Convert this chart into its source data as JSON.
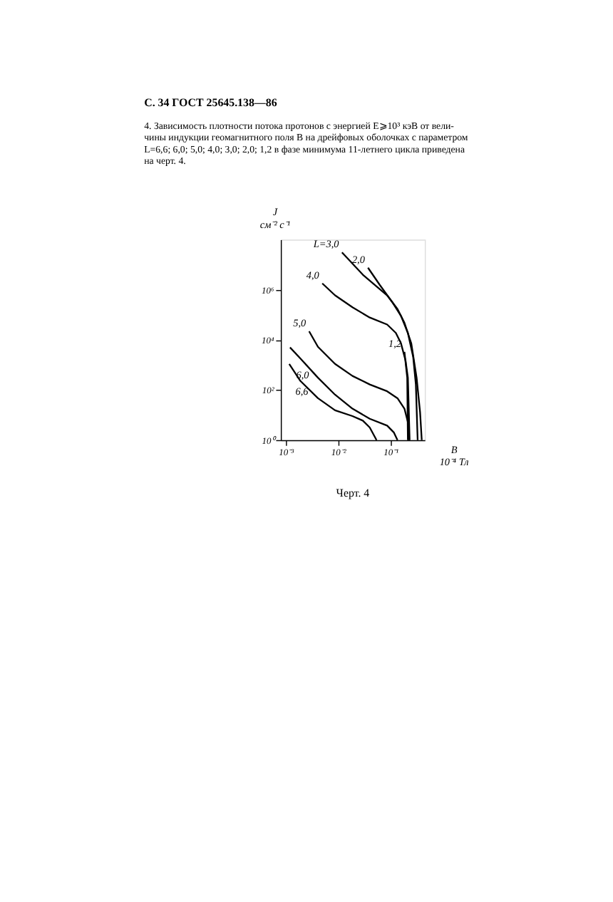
{
  "chart_data": {
    "type": "line",
    "title": "С. 34 ГОСТ 25645.138—86",
    "subtitle": "4. Зависимость плотности потока протонов с энергией E⩾10³ кэВ от вели-\nчины индукции геомагнитного поля B на дрейфовых оболочках с параметром\nL=6,6; 6,0; 5,0; 4,0; 3,0; 2,0; 1,2 в фазе минимума 11-летнего цикла приведена\nна черт. 4.",
    "xlabel": "B\n10⁻⁴ Тл",
    "ylabel": "J\nсм⁻² с⁻¹",
    "log": "xy",
    "grid": false,
    "legend": false,
    "line_style": "solid",
    "marker": "none",
    "xlim": [
      0.0008,
      0.45
    ],
    "ylim": [
      1,
      100000000
    ],
    "xticks": [
      {
        "value": 0.001,
        "label": "10⁻³"
      },
      {
        "value": 0.01,
        "label": "10⁻²"
      },
      {
        "value": 0.1,
        "label": "10⁻¹"
      }
    ],
    "yticks": [
      {
        "value": 1,
        "label": "10⁰"
      },
      {
        "value": 100,
        "label": "10²"
      },
      {
        "value": 10000,
        "label": "10⁴"
      },
      {
        "value": 1000000,
        "label": "10⁶"
      }
    ],
    "series": [
      {
        "name": "L=3,0",
        "color": "#000000",
        "x": [
          0.0118,
          0.0295,
          0.0859,
          0.1355,
          0.184,
          0.249,
          0.314,
          0.366,
          0.394
        ],
        "values": [
          31000000,
          4000000,
          600000,
          170000,
          48000,
          7200,
          310,
          13,
          1
        ]
      },
      {
        "name": "2,0",
        "color": "#000000",
        "x": [
          0.037,
          0.063,
          0.108,
          0.158,
          0.214,
          0.27,
          0.304,
          0.329
        ],
        "values": [
          7600000,
          1500000,
          320000,
          91000,
          19000,
          2100,
          166,
          1
        ]
      },
      {
        "name": "4,0",
        "color": "#000000",
        "x": [
          0.00496,
          0.0087,
          0.0187,
          0.04,
          0.086,
          0.126,
          0.158,
          0.193,
          0.214,
          0.231
        ],
        "values": [
          1800000,
          600000,
          200000,
          78000,
          41000,
          19000,
          7300,
          1500,
          310,
          1
        ]
      },
      {
        "name": "1,2",
        "color": "#000000",
        "x": [
          0.184,
          0.208,
          0.214
        ],
        "values": [
          3300,
          310,
          1
        ]
      },
      {
        "name": "5,0",
        "color": "#000000",
        "x": [
          0.00278,
          0.0041,
          0.0087,
          0.0187,
          0.04,
          0.086,
          0.1355,
          0.184,
          0.214,
          0.224
        ],
        "values": [
          22000,
          5300,
          1100,
          365,
          166,
          89,
          47,
          18,
          5.2,
          1
        ]
      },
      {
        "name": "6,0",
        "color": "#000000",
        "x": [
          0.0012,
          0.0019,
          0.0041,
          0.0087,
          0.0187,
          0.04,
          0.086,
          0.116,
          0.1355
        ],
        "values": [
          5000,
          1800,
          310,
          65,
          18,
          7.1,
          3.8,
          2.0,
          1
        ]
      },
      {
        "name": "6,6",
        "color": "#000000",
        "x": [
          0.00116,
          0.0019,
          0.0041,
          0.0087,
          0.0187,
          0.0295,
          0.04,
          0.054
        ],
        "values": [
          1100,
          228,
          47,
          15.5,
          9.1,
          6.0,
          3.2,
          1
        ]
      }
    ],
    "annotations": [
      "Черт. 4"
    ]
  }
}
